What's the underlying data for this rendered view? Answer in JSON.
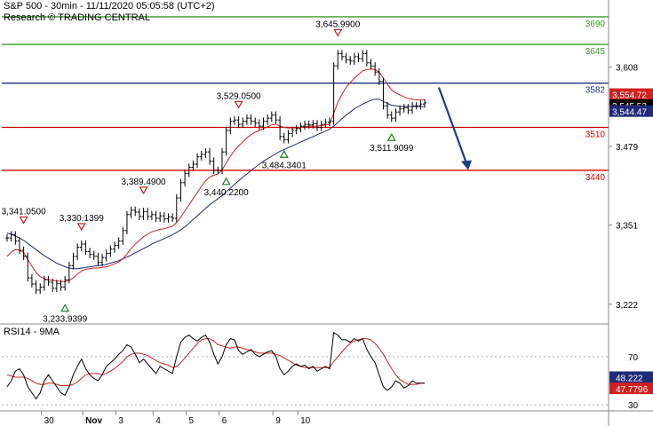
{
  "header": {
    "title": "S&P 500 - 30min - 11/11/2020 05:05:58 (UTC+2)",
    "source": "Research © TRADING CENTRAL"
  },
  "colors": {
    "price": "#000000",
    "ma_red": "#d42020",
    "ma_blue": "#1e2a7a",
    "support": "#d40000",
    "pivot": "#1f2d7a",
    "resistance": "#3a9a2a",
    "arrow": "#1f3a8a",
    "last_price_box": "#000000",
    "red_box": "#d42020",
    "blue_box": "#1e2a7a",
    "rsi": "#000000",
    "rsi_ma": "#d42020"
  },
  "chart_data": [
    {
      "type": "line",
      "title": "S&P 500 - 30min",
      "xlabel": "",
      "ylabel": "",
      "ylim": [
        3190,
        3700
      ],
      "x_ticks": [
        "30",
        "Nov",
        "3",
        "4",
        "5",
        "6",
        "9",
        "10"
      ],
      "y_ticks": [
        3222,
        3351,
        3479,
        3608
      ],
      "grid": false,
      "horizontal_levels": [
        {
          "value": 3690,
          "label": "3690",
          "kind": "resistance"
        },
        {
          "value": 3645,
          "label": "3645",
          "kind": "resistance"
        },
        {
          "value": 3582,
          "label": "3582",
          "kind": "pivot"
        },
        {
          "value": 3510,
          "label": "3510",
          "kind": "support"
        },
        {
          "value": 3440,
          "label": "3440",
          "kind": "support"
        }
      ],
      "last_values": [
        {
          "label": "3,554.72",
          "value": 3554.72,
          "kind": "red"
        },
        {
          "label": "3,545.53",
          "value": 3545.53,
          "kind": "price"
        },
        {
          "label": "3,544.47",
          "value": 3544.47,
          "kind": "blue"
        }
      ],
      "annotations": [
        {
          "text": "3,341.0500",
          "x": 4,
          "y": 3341.05,
          "marker": "down"
        },
        {
          "text": "3,330.1399",
          "x": 18,
          "y": 3330.14,
          "marker": "down"
        },
        {
          "text": "3,233.9399",
          "x": 14,
          "y": 3233.94,
          "marker": "up"
        },
        {
          "text": "3,389.4900",
          "x": 33,
          "y": 3389.49,
          "marker": "down"
        },
        {
          "text": "3,529.0500",
          "x": 56,
          "y": 3529.05,
          "marker": "down"
        },
        {
          "text": "3,440.2200",
          "x": 53,
          "y": 3440.22,
          "marker": "up"
        },
        {
          "text": "3,484.3401",
          "x": 67,
          "y": 3484.34,
          "marker": "up"
        },
        {
          "text": "3,645.9900",
          "x": 80,
          "y": 3645.99,
          "marker": "down"
        },
        {
          "text": "3,511.9099",
          "x": 93,
          "y": 3511.91,
          "marker": "up"
        }
      ],
      "series": [
        {
          "name": "S&P 500",
          "values": [
            3330,
            3335,
            3325,
            3310,
            3300,
            3265,
            3255,
            3245,
            3250,
            3262,
            3258,
            3248,
            3256,
            3250,
            3262,
            3285,
            3300,
            3315,
            3320,
            3308,
            3303,
            3300,
            3290,
            3298,
            3305,
            3312,
            3318,
            3325,
            3342,
            3368,
            3375,
            3372,
            3365,
            3373,
            3365,
            3368,
            3362,
            3366,
            3361,
            3364,
            3362,
            3395,
            3420,
            3435,
            3445,
            3450,
            3462,
            3466,
            3470,
            3455,
            3440,
            3440,
            3470,
            3505,
            3520,
            3522,
            3515,
            3520,
            3525,
            3520,
            3517,
            3512,
            3520,
            3525,
            3530,
            3522,
            3495,
            3490,
            3500,
            3505,
            3508,
            3512,
            3515,
            3514,
            3516,
            3510,
            3515,
            3518,
            3520,
            3610,
            3630,
            3625,
            3620,
            3618,
            3625,
            3622,
            3630,
            3615,
            3610,
            3600,
            3585,
            3545,
            3530,
            3525,
            3535,
            3540,
            3542,
            3538,
            3545,
            3545,
            3548,
            3550
          ],
          "color": "#000000"
        },
        {
          "name": "",
          "values": [
            3300,
            3307,
            3311,
            3310,
            3306,
            3295,
            3284,
            3274,
            3267,
            3264,
            3262,
            3261,
            3260,
            3259,
            3259,
            3261,
            3265,
            3271,
            3276,
            3279,
            3280,
            3281,
            3281,
            3282,
            3283,
            3285,
            3288,
            3291,
            3296,
            3304,
            3313,
            3320,
            3326,
            3332,
            3336,
            3340,
            3342,
            3344,
            3345,
            3347,
            3349,
            3355,
            3364,
            3374,
            3384,
            3394,
            3404,
            3414,
            3423,
            3429,
            3432,
            3434,
            3441,
            3452,
            3463,
            3472,
            3480,
            3486,
            3493,
            3498,
            3502,
            3505,
            3508,
            3511,
            3514,
            3515,
            3512,
            3510,
            3509,
            3509,
            3509,
            3510,
            3511,
            3512,
            3512,
            3512,
            3513,
            3514,
            3515,
            3533,
            3551,
            3564,
            3575,
            3583,
            3590,
            3596,
            3602,
            3604,
            3605,
            3604,
            3600,
            3590,
            3580,
            3571,
            3566,
            3563,
            3560,
            3557,
            3556,
            3555,
            3555,
            3555
          ],
          "color": "#d42020"
        },
        {
          "name": "",
          "values": [
            3338,
            3336,
            3333,
            3330,
            3326,
            3321,
            3316,
            3311,
            3306,
            3301,
            3297,
            3293,
            3289,
            3286,
            3283,
            3281,
            3280,
            3280,
            3281,
            3282,
            3283,
            3284,
            3285,
            3286,
            3287,
            3289,
            3291,
            3293,
            3296,
            3299,
            3302,
            3306,
            3309,
            3313,
            3316,
            3320,
            3323,
            3326,
            3329,
            3332,
            3335,
            3339,
            3343,
            3348,
            3354,
            3360,
            3366,
            3372,
            3378,
            3384,
            3389,
            3394,
            3399,
            3405,
            3411,
            3417,
            3423,
            3429,
            3434,
            3440,
            3445,
            3450,
            3455,
            3459,
            3463,
            3467,
            3471,
            3474,
            3477,
            3480,
            3483,
            3486,
            3489,
            3492,
            3495,
            3498,
            3501,
            3504,
            3507,
            3512,
            3518,
            3524,
            3530,
            3535,
            3540,
            3544,
            3548,
            3551,
            3554,
            3556,
            3556,
            3552,
            3549,
            3546,
            3545,
            3544,
            3544,
            3544,
            3544,
            3544,
            3544,
            3544
          ],
          "color": "#1e2a7a"
        }
      ]
    },
    {
      "type": "line",
      "title": "RSI14 - 9MA",
      "xlabel": "",
      "ylabel": "",
      "ylim": [
        25,
        95
      ],
      "y_ticks": [
        30,
        70
      ],
      "grid": false,
      "last_values": [
        {
          "label": "48.222",
          "value": 48.222,
          "kind": "rsi"
        },
        {
          "label": "47.7796",
          "value": 47.7796,
          "kind": "rsi_ma"
        }
      ],
      "series": [
        {
          "name": "RSI14",
          "values": [
            45,
            50,
            58,
            60,
            55,
            45,
            40,
            35,
            40,
            50,
            55,
            50,
            45,
            40,
            38,
            45,
            55,
            62,
            68,
            60,
            55,
            52,
            50,
            55,
            62,
            65,
            68,
            72,
            75,
            80,
            78,
            72,
            65,
            68,
            64,
            60,
            56,
            62,
            60,
            58,
            56,
            70,
            82,
            86,
            88,
            85,
            83,
            86,
            88,
            82,
            72,
            64,
            70,
            80,
            85,
            84,
            75,
            72,
            74,
            76,
            72,
            70,
            72,
            74,
            75,
            70,
            60,
            55,
            58,
            62,
            64,
            62,
            63,
            60,
            62,
            58,
            60,
            62,
            60,
            90,
            88,
            84,
            84,
            82,
            85,
            83,
            85,
            76,
            70,
            65,
            55,
            45,
            42,
            45,
            50,
            48,
            44,
            46,
            50,
            48,
            48,
            48
          ],
          "color": "#000000"
        },
        {
          "name": "9MA",
          "values": [
            55,
            54,
            53,
            53,
            53,
            52,
            50,
            48,
            47,
            47,
            48,
            48,
            47,
            46,
            46,
            46,
            47,
            49,
            52,
            55,
            56,
            56,
            56,
            55,
            56,
            58,
            60,
            63,
            66,
            70,
            72,
            73,
            73,
            72,
            71,
            69,
            67,
            65,
            64,
            63,
            61,
            62,
            65,
            69,
            73,
            77,
            81,
            84,
            85,
            85,
            83,
            80,
            79,
            78,
            77,
            78,
            78,
            77,
            76,
            75,
            74,
            73,
            73,
            73,
            73,
            72,
            71,
            69,
            67,
            65,
            63,
            62,
            61,
            61,
            61,
            61,
            61,
            61,
            61,
            66,
            70,
            74,
            78,
            81,
            83,
            84,
            85,
            85,
            84,
            81,
            77,
            72,
            66,
            60,
            55,
            51,
            49,
            47,
            47,
            47,
            48,
            48
          ],
          "color": "#d42020"
        }
      ]
    }
  ]
}
